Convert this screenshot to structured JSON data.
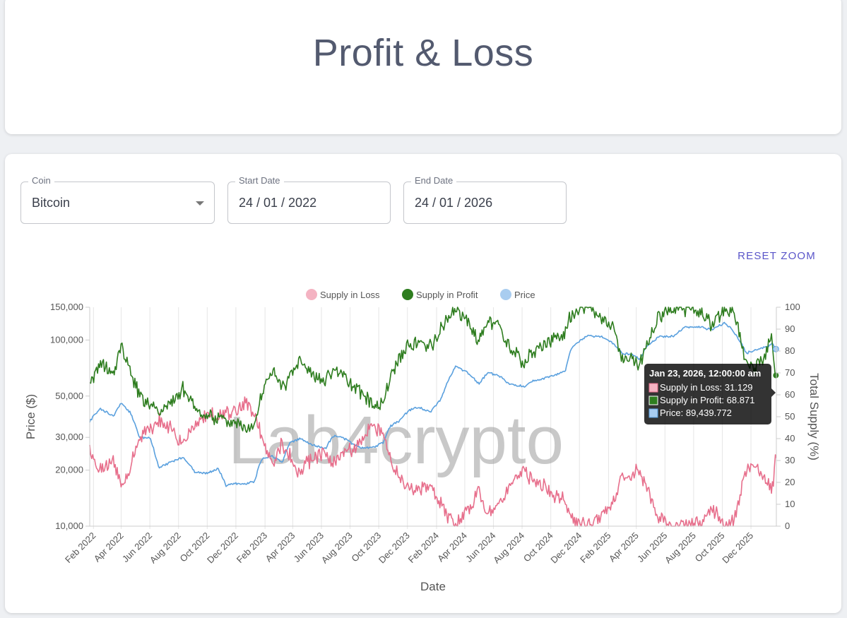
{
  "page": {
    "title": "Profit & Loss"
  },
  "filters": {
    "coin": {
      "label": "Coin",
      "value": "Bitcoin"
    },
    "start_date": {
      "label": "Start Date",
      "value": "24 / 01 / 2022"
    },
    "end_date": {
      "label": "End Date",
      "value": "24 / 01 / 2026"
    }
  },
  "toolbar": {
    "reset_zoom_label": "RESET ZOOM"
  },
  "watermark": "Lab4crypto",
  "colors": {
    "loss": "#e76f8c",
    "loss_legend": "#f4b3c2",
    "profit": "#2e7d1f",
    "price": "#5aa0de",
    "price_legend": "#a9cdf0"
  },
  "tooltip": {
    "title": "Jan 23, 2026, 12:00:00 am",
    "lines": [
      "Supply in Loss: 31.129",
      "Supply in Profit: 68.871",
      "Price: 89,439.772"
    ]
  },
  "chart_data": {
    "type": "line",
    "title": "",
    "xlabel": "Date",
    "ylabel_left": "Price ($)",
    "ylabel_right": "Total Supply (%)",
    "y_left_scale": "log",
    "y_left_range": [
      10000,
      150000
    ],
    "y_left_ticks": [
      "150,000",
      "100,000",
      "50,000",
      "30,000",
      "20,000",
      "10,000"
    ],
    "y_left_tick_values": [
      150000,
      100000,
      50000,
      30000,
      20000,
      10000
    ],
    "y_right_range": [
      0,
      100
    ],
    "y_right_ticks": [
      "100",
      "90",
      "80",
      "70",
      "60",
      "50",
      "40",
      "30",
      "20",
      "10",
      "0"
    ],
    "x_range": [
      "2022-01-24",
      "2026-01-24"
    ],
    "x_ticks": [
      "Feb 2022",
      "Apr 2022",
      "Jun 2022",
      "Aug 2022",
      "Oct 2022",
      "Dec 2022",
      "Feb 2023",
      "Apr 2023",
      "Jun 2023",
      "Aug 2023",
      "Oct 2023",
      "Dec 2023",
      "Feb 2024",
      "Apr 2024",
      "Jun 2024",
      "Aug 2024",
      "Oct 2024",
      "Dec 2024",
      "Feb 2025",
      "Apr 2025",
      "Jun 2025",
      "Aug 2025",
      "Oct 2025",
      "Dec 2025"
    ],
    "grid": "vertical",
    "legend_position": "top",
    "x": [
      "2022-01-24",
      "2022-02-15",
      "2022-03-15",
      "2022-04-01",
      "2022-04-20",
      "2022-05-10",
      "2022-06-01",
      "2022-06-20",
      "2022-07-15",
      "2022-08-10",
      "2022-09-05",
      "2022-10-01",
      "2022-10-25",
      "2022-11-10",
      "2022-12-01",
      "2022-12-20",
      "2023-01-10",
      "2023-01-25",
      "2023-02-15",
      "2023-03-10",
      "2023-03-25",
      "2023-04-15",
      "2023-05-10",
      "2023-06-10",
      "2023-06-25",
      "2023-07-15",
      "2023-08-20",
      "2023-09-15",
      "2023-10-10",
      "2023-10-25",
      "2023-11-15",
      "2023-12-05",
      "2023-12-25",
      "2024-01-20",
      "2024-02-10",
      "2024-02-28",
      "2024-03-13",
      "2024-04-10",
      "2024-05-01",
      "2024-05-20",
      "2024-06-10",
      "2024-07-05",
      "2024-08-05",
      "2024-08-25",
      "2024-09-15",
      "2024-10-10",
      "2024-11-01",
      "2024-11-12",
      "2024-11-25",
      "2024-12-17",
      "2025-01-20",
      "2025-02-10",
      "2025-03-01",
      "2025-03-20",
      "2025-04-08",
      "2025-04-25",
      "2025-05-20",
      "2025-06-20",
      "2025-07-14",
      "2025-08-14",
      "2025-09-10",
      "2025-10-06",
      "2025-10-25",
      "2025-11-10",
      "2025-11-21",
      "2025-12-10",
      "2026-01-05",
      "2026-01-14",
      "2026-01-23"
    ],
    "series": [
      {
        "name": "Price",
        "axis": "left",
        "values": [
          36500,
          43000,
          39000,
          45500,
          41000,
          30000,
          30000,
          20500,
          22000,
          23500,
          19500,
          19300,
          20300,
          16500,
          17000,
          16800,
          17500,
          23000,
          24000,
          22000,
          28000,
          29500,
          27500,
          26000,
          30500,
          30000,
          26500,
          26500,
          28000,
          34500,
          37000,
          42000,
          43500,
          41000,
          48000,
          62000,
          72000,
          66000,
          58000,
          67000,
          65000,
          58000,
          56000,
          60000,
          62000,
          65000,
          68500,
          88000,
          96000,
          105000,
          104000,
          96000,
          85000,
          84000,
          79000,
          93000,
          104000,
          105000,
          118000,
          117000,
          114000,
          124000,
          111000,
          96000,
          85000,
          88000,
          92000,
          96000,
          89439.772
        ]
      },
      {
        "name": "Supply in Profit",
        "axis": "right",
        "values": [
          65,
          74,
          70,
          82,
          72,
          60,
          56,
          52,
          56,
          62,
          54,
          50,
          50,
          48,
          48,
          45,
          48,
          60,
          72,
          62,
          68,
          76,
          70,
          66,
          72,
          68,
          62,
          56,
          56,
          68,
          78,
          82,
          84,
          82,
          90,
          96,
          100,
          92,
          84,
          94,
          92,
          82,
          74,
          80,
          82,
          86,
          88,
          96,
          99,
          100,
          94,
          90,
          76,
          78,
          74,
          84,
          96,
          100,
          100,
          98,
          92,
          100,
          98,
          84,
          74,
          72,
          80,
          86,
          68.871
        ]
      },
      {
        "name": "Supply in Loss",
        "axis": "right",
        "values": [
          35,
          26,
          30,
          18,
          28,
          40,
          44,
          48,
          44,
          38,
          46,
          50,
          50,
          52,
          52,
          55,
          52,
          40,
          28,
          38,
          32,
          24,
          30,
          34,
          28,
          32,
          38,
          44,
          44,
          32,
          22,
          18,
          16,
          18,
          10,
          4,
          0,
          8,
          16,
          6,
          8,
          18,
          26,
          20,
          18,
          14,
          12,
          4,
          1,
          0,
          6,
          10,
          24,
          22,
          26,
          16,
          4,
          0,
          0,
          2,
          8,
          0,
          2,
          16,
          26,
          28,
          20,
          14,
          31.129
        ]
      }
    ]
  }
}
